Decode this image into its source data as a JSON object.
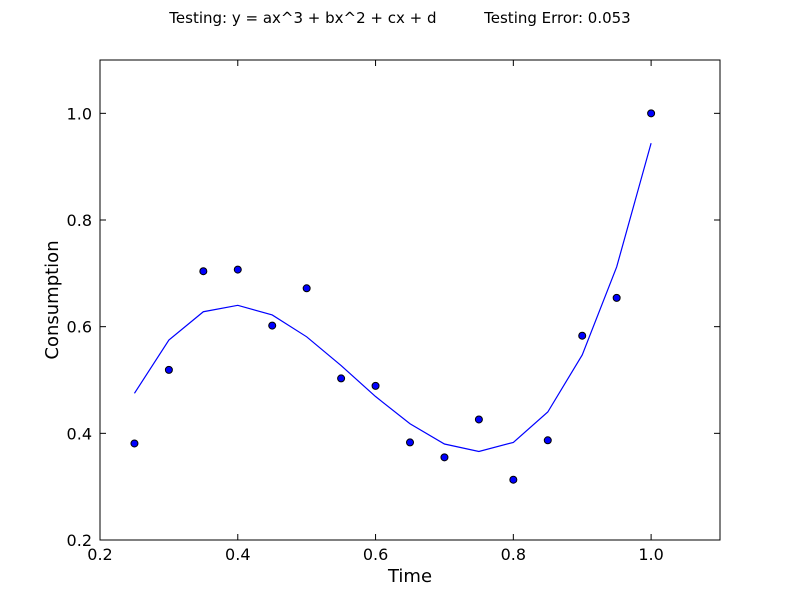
{
  "chart_data": {
    "type": "scatter",
    "title": "Testing: y = ax^3 + bx^2 + cx + d          Testing Error: 0.053",
    "xlabel": "Time",
    "ylabel": "Consumption",
    "xlim": [
      0.2,
      1.1
    ],
    "ylim": [
      0.2,
      1.1
    ],
    "xticks": [
      0.2,
      0.4,
      0.6,
      0.8,
      1.0
    ],
    "yticks": [
      0.2,
      0.4,
      0.6,
      0.8,
      1.0
    ],
    "grid": false,
    "series": [
      {
        "kind": "scatter",
        "color": "#0000ff",
        "x": [
          0.25,
          0.3,
          0.35,
          0.4,
          0.45,
          0.5,
          0.55,
          0.6,
          0.65,
          0.7,
          0.75,
          0.8,
          0.85,
          0.9,
          0.95,
          1.0
        ],
        "y": [
          0.381,
          0.519,
          0.704,
          0.707,
          0.602,
          0.672,
          0.503,
          0.489,
          0.383,
          0.355,
          0.426,
          0.313,
          0.387,
          0.583,
          0.654,
          1.0
        ]
      },
      {
        "kind": "line",
        "color": "#0000ff",
        "x": [
          0.25,
          0.3,
          0.35,
          0.4,
          0.45,
          0.5,
          0.55,
          0.6,
          0.65,
          0.7,
          0.75,
          0.8,
          0.85,
          0.9,
          0.95,
          1.0
        ],
        "y": [
          0.475,
          0.575,
          0.628,
          0.64,
          0.622,
          0.581,
          0.527,
          0.469,
          0.418,
          0.38,
          0.366,
          0.383,
          0.44,
          0.547,
          0.712,
          0.944
        ]
      }
    ]
  }
}
